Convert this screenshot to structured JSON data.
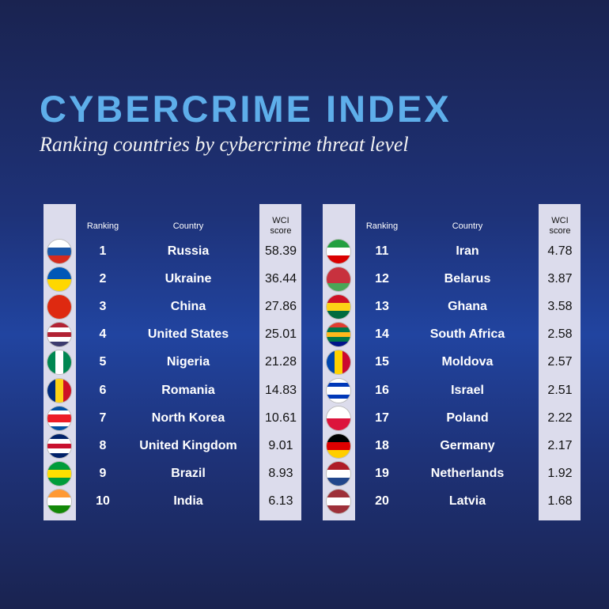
{
  "header": {
    "title": "CYBERCRIME INDEX",
    "subtitle": "Ranking countries by cybercrime threat level"
  },
  "tables": [
    {
      "headers": [
        "Ranking",
        "Country",
        "WCI score"
      ],
      "rows": [
        [
          1,
          "Russia",
          58.39
        ],
        [
          2,
          "Ukraine",
          36.44
        ],
        [
          3,
          "China",
          27.86
        ],
        [
          4,
          "United States",
          25.01
        ],
        [
          5,
          "Nigeria",
          21.28
        ],
        [
          6,
          "Romania",
          14.83
        ],
        [
          7,
          "North Korea",
          10.61
        ],
        [
          8,
          "United Kingdom",
          9.01
        ],
        [
          9,
          "Brazil",
          8.93
        ],
        [
          10,
          "India",
          6.13
        ]
      ]
    },
    {
      "headers": [
        "Ranking",
        "Country",
        "WCI score"
      ],
      "rows": [
        [
          11,
          "Iran",
          4.78
        ],
        [
          12,
          "Belarus",
          3.87
        ],
        [
          13,
          "Ghana",
          3.58
        ],
        [
          14,
          "South Africa",
          2.58
        ],
        [
          15,
          "Moldova",
          2.57
        ],
        [
          16,
          "Israel",
          2.51
        ],
        [
          17,
          "Poland",
          2.22
        ],
        [
          18,
          "Germany",
          2.17
        ],
        [
          19,
          "Netherlands",
          1.92
        ],
        [
          20,
          "Latvia",
          1.68
        ]
      ]
    }
  ]
}
